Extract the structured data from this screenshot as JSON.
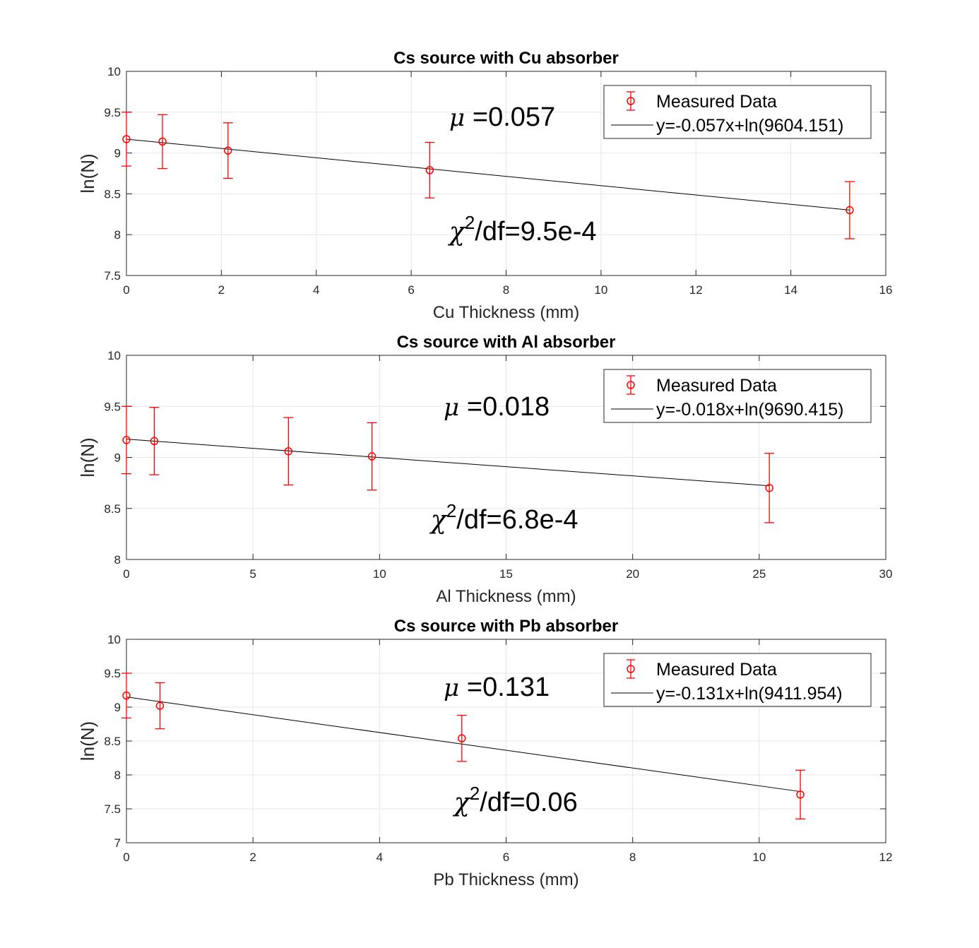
{
  "chart_data": [
    {
      "type": "scatter",
      "title": "Cs source with Cu absorber",
      "xlabel": "Cu Thickness (mm)",
      "ylabel": "ln(N)",
      "xlim": [
        0,
        16
      ],
      "ylim": [
        7.5,
        10
      ],
      "xticks": [
        "0",
        "2",
        "4",
        "6",
        "8",
        "10",
        "12",
        "14",
        "16"
      ],
      "yticks": [
        "7.5",
        "8",
        "8.5",
        "9",
        "9.5",
        "10"
      ],
      "grid": true,
      "legend_position": "top-right",
      "legend": [
        "Measured Data",
        "y=-0.057x+ln(9604.151)"
      ],
      "series": [
        {
          "name": "Measured Data",
          "style": "errorbar",
          "x": [
            0,
            0.76,
            2.14,
            6.39,
            15.24
          ],
          "y": [
            9.17,
            9.14,
            9.03,
            8.79,
            8.3
          ],
          "err": [
            0.33,
            0.33,
            0.34,
            0.34,
            0.35
          ]
        },
        {
          "name": "y=-0.057x+ln(9604.151)",
          "style": "line",
          "slope": -0.057,
          "intercept_n": 9604.151,
          "x": [
            0,
            15.24
          ]
        }
      ],
      "annotations": {
        "mu": "=0.057",
        "chi2": "/df=9.5e-4"
      }
    },
    {
      "type": "scatter",
      "title": "Cs source with Al absorber",
      "xlabel": "Al Thickness (mm)",
      "ylabel": "ln(N)",
      "xlim": [
        0,
        30
      ],
      "ylim": [
        8,
        10
      ],
      "xticks": [
        "0",
        "5",
        "10",
        "15",
        "20",
        "25",
        "30"
      ],
      "yticks": [
        "8",
        "8.5",
        "9",
        "9.5",
        "10"
      ],
      "grid": true,
      "legend_position": "top-right",
      "legend": [
        "Measured Data",
        "y=-0.018x+ln(9690.415)"
      ],
      "series": [
        {
          "name": "Measured Data",
          "style": "errorbar",
          "x": [
            0,
            1.1,
            6.4,
            9.7,
            25.4
          ],
          "y": [
            9.17,
            9.16,
            9.06,
            9.01,
            8.7
          ],
          "err": [
            0.33,
            0.33,
            0.33,
            0.33,
            0.34
          ]
        },
        {
          "name": "y=-0.018x+ln(9690.415)",
          "style": "line",
          "slope": -0.018,
          "intercept_n": 9690.415,
          "x": [
            0,
            25.4
          ]
        }
      ],
      "annotations": {
        "mu": "=0.018",
        "chi2": "/df=6.8e-4"
      }
    },
    {
      "type": "scatter",
      "title": "Cs source with Pb absorber",
      "xlabel": "Pb Thickness (mm)",
      "ylabel": "ln(N)",
      "xlim": [
        0,
        12
      ],
      "ylim": [
        7,
        10
      ],
      "xticks": [
        "0",
        "2",
        "4",
        "6",
        "8",
        "10",
        "12"
      ],
      "yticks": [
        "7",
        "7.5",
        "8",
        "8.5",
        "9",
        "9.5",
        "10"
      ],
      "grid": true,
      "legend_position": "top-right",
      "legend": [
        "Measured Data",
        "y=-0.131x+ln(9411.954)"
      ],
      "series": [
        {
          "name": "Measured Data",
          "style": "errorbar",
          "x": [
            0,
            0.53,
            5.3,
            10.65
          ],
          "y": [
            9.17,
            9.02,
            8.54,
            7.71
          ],
          "err": [
            0.33,
            0.34,
            0.34,
            0.36
          ]
        },
        {
          "name": "y=-0.131x+ln(9411.954)",
          "style": "line",
          "slope": -0.131,
          "intercept_n": 9411.954,
          "x": [
            0,
            10.65
          ]
        }
      ],
      "annotations": {
        "mu": "=0.131",
        "chi2": "/df=0.06"
      }
    }
  ],
  "colors": {
    "data": "#ff0000",
    "fit": "#000000",
    "grid": "#e6e6e6",
    "axis": "#262626"
  }
}
